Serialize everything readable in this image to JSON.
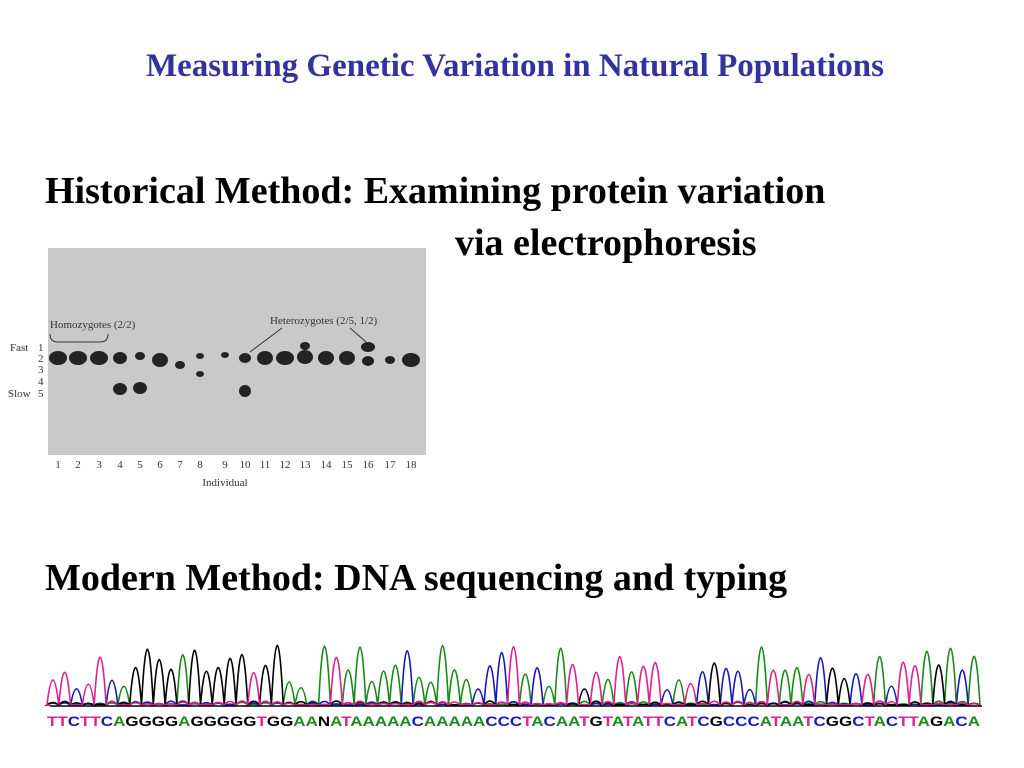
{
  "slide": {
    "title": "Measuring Genetic Variation in Natural Populations",
    "historical_heading": "Historical Method: Examining protein variation",
    "historical_heading_cont": "via electrophoresis",
    "gel": {
      "homozygotes_label": "Homozygotes (2/2)",
      "heterozygotes_label": "Heterozygotes (2/5, 1/2)",
      "fast_label": "Fast",
      "slow_label": "Slow",
      "band_positions": [
        "1",
        "2",
        "3",
        "4",
        "5"
      ],
      "lanes": [
        "1",
        "2",
        "3",
        "4",
        "5",
        "6",
        "7",
        "8",
        "9",
        "10",
        "11",
        "12",
        "13",
        "14",
        "15",
        "16",
        "17",
        "18"
      ],
      "x_label": "Individual"
    },
    "modern_heading": "Modern Method: DNA sequencing and typing",
    "sequence": "TTCTTCAGGGGAGGGGGTGGAANATAAAAACAAAAACCCTACAATGTATATTCATCGCCCATAATCGGCTACTTAGACA"
  }
}
